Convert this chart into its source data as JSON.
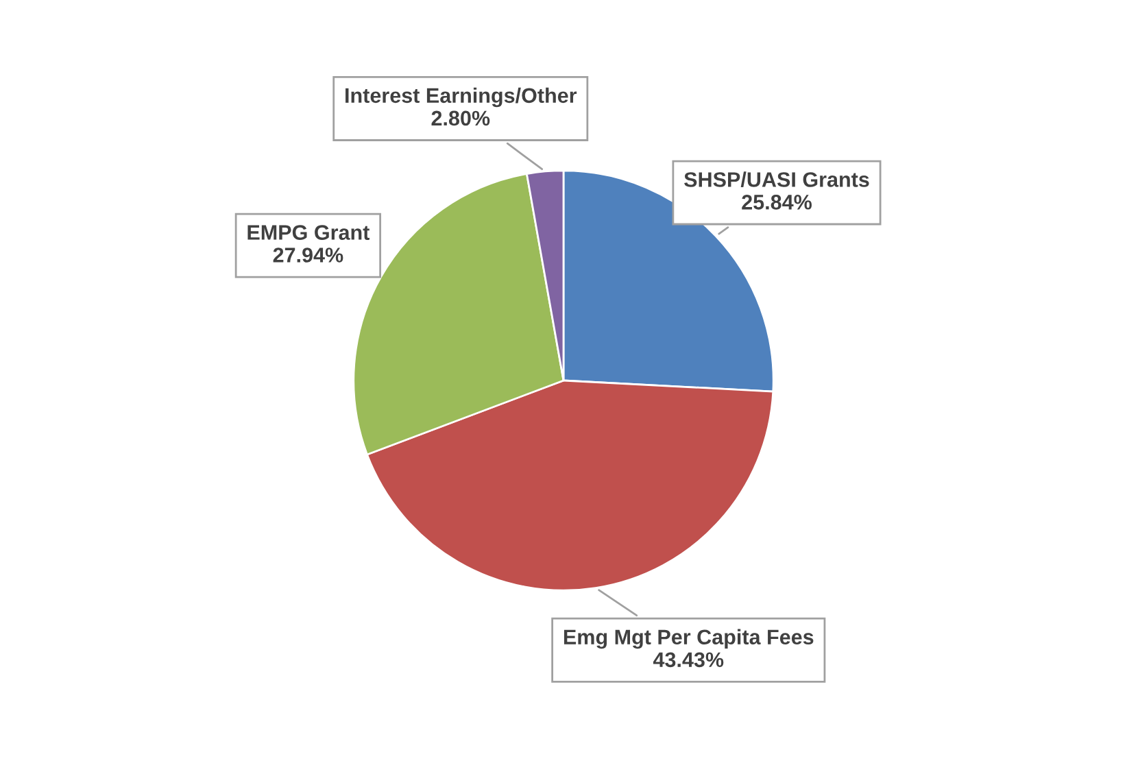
{
  "chart_data": {
    "type": "pie",
    "categories": [
      "SHSP/UASI Grants",
      "Emg Mgt Per Capita Fees",
      "EMPG Grant",
      "Interest Earnings/Other"
    ],
    "values": [
      25.84,
      43.43,
      27.94,
      2.8
    ],
    "value_labels": [
      "25.84%",
      "43.43%",
      "27.94%",
      "2.80%"
    ],
    "colors": [
      "#4f81bd",
      "#c0504d",
      "#9bbb59",
      "#8064a2"
    ],
    "legend": false
  }
}
